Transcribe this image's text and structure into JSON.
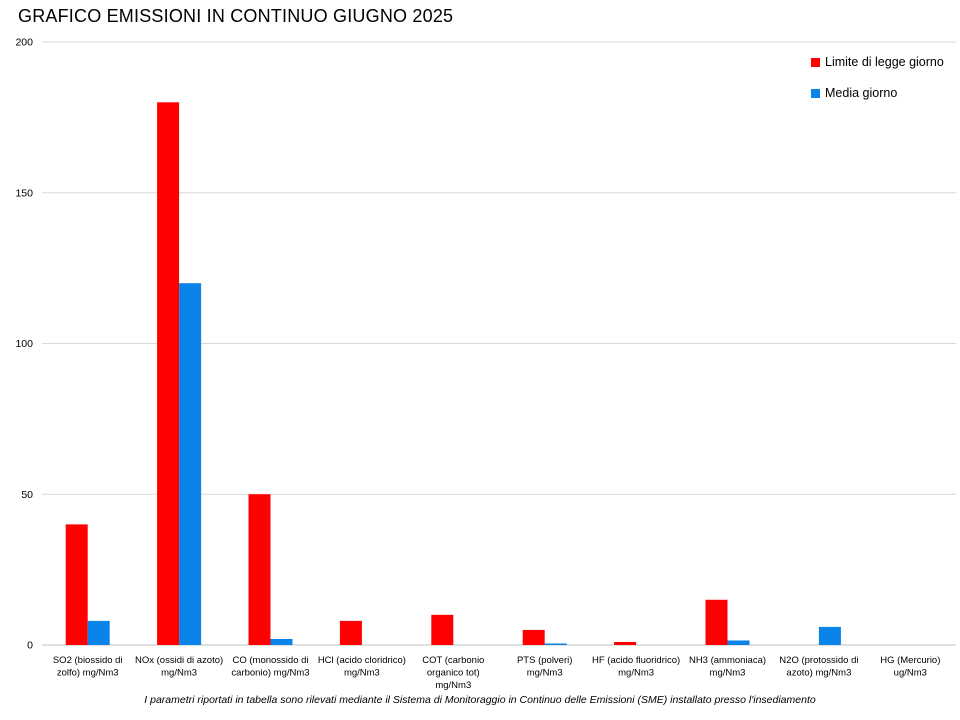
{
  "chart_data": {
    "type": "bar",
    "title": "GRAFICO EMISSIONI IN CONTINUO GIUGNO 2025",
    "xlabel": "",
    "ylabel": "",
    "ylim": [
      0,
      200
    ],
    "yticks": [
      0,
      50,
      100,
      150,
      200
    ],
    "grid": true,
    "legend_position": "top-right",
    "categories": [
      [
        "SO2 (biossido di",
        "zolfo) mg/Nm3"
      ],
      [
        "NOx (ossidi di azoto)",
        "mg/Nm3"
      ],
      [
        "CO (monossido di",
        "carbonio) mg/Nm3"
      ],
      [
        "HCl (acido cloridrico)",
        "mg/Nm3"
      ],
      [
        "COT (carbonio",
        "organico tot)",
        "mg/Nm3"
      ],
      [
        "PTS (polveri)",
        "mg/Nm3"
      ],
      [
        "HF (acido fluoridrico)",
        "mg/Nm3"
      ],
      [
        "NH3 (ammoniaca)",
        "mg/Nm3"
      ],
      [
        "N2O (protossido di",
        "azoto) mg/Nm3"
      ],
      [
        "HG (Mercurio)",
        "ug/Nm3"
      ]
    ],
    "series": [
      {
        "name": "Limite di legge giorno",
        "color": "#ff0000",
        "values": [
          40,
          180,
          50,
          8,
          10,
          5,
          1,
          15,
          null,
          null
        ]
      },
      {
        "name": "Media giorno",
        "color": "#0a84e8",
        "values": [
          8,
          120,
          2,
          null,
          null,
          0.5,
          null,
          1.5,
          6,
          null
        ]
      }
    ]
  },
  "footnote": "I parametri riportati in tabella sono rilevati mediante il Sistema di Monitoraggio in Continuo delle Emissioni (SME) installato presso l'insediamento"
}
